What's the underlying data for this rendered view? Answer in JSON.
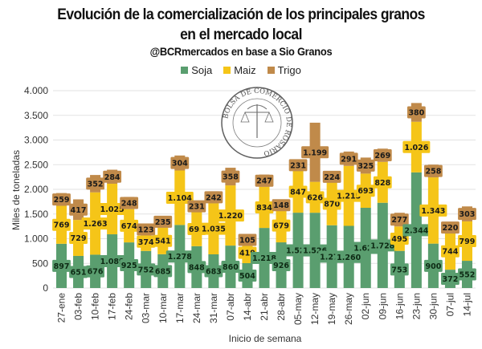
{
  "chart_data": {
    "type": "bar",
    "stacked": true,
    "title": "Evolución de la comercialización de los principales granos",
    "title_line2": "en el mercado local",
    "subtitle": "@BCRmercados en base a Sio Granos",
    "xlabel": "Inicio de semana",
    "ylabel": "Miles de toneladas",
    "ylim": [
      0,
      4000
    ],
    "yticks": [
      "0",
      "500",
      "1.000",
      "1.500",
      "2.000",
      "2.500",
      "3.000",
      "3.500",
      "4.000"
    ],
    "ytick_values": [
      0,
      500,
      1000,
      1500,
      2000,
      2500,
      3000,
      3500,
      4000
    ],
    "grid": true,
    "legend_position": "top",
    "watermark": "BOLSA DE COMERCIO DE ROSARIO",
    "categories": [
      "27-ene",
      "03-feb",
      "10-feb",
      "17-feb",
      "24-feb",
      "03-mar",
      "10-mar",
      "17-mar",
      "24-mar",
      "31-mar",
      "07-abr",
      "14-abr",
      "21-abr",
      "28-abr",
      "05-may",
      "12-may",
      "19-may",
      "26-may",
      "02-jun",
      "09-jun",
      "16-jun",
      "23-jun",
      "30-jun",
      "07-jul",
      "14-jul"
    ],
    "series": [
      {
        "name": "Soja",
        "color": "#5a9e6f",
        "values": [
          897,
          651,
          676,
          1089,
          925,
          752,
          685,
          1278,
          848,
          683,
          860,
          504,
          1218,
          926,
          1527,
          1526,
          1272,
          1260,
          1626,
          1728,
          753,
          2344,
          900,
          372,
          552
        ],
        "labels": [
          "897",
          "651",
          "676",
          "1.089",
          "925",
          "752",
          "685",
          "1.278",
          "848",
          "683",
          "860",
          "504",
          "1.218",
          "926",
          "1.527",
          "1.526",
          "1.272",
          "1.260",
          "1.626",
          "1.728",
          "753",
          "2.344",
          "900",
          "372",
          "552"
        ]
      },
      {
        "name": "Maiz",
        "color": "#f5c518",
        "values": [
          769,
          729,
          1263,
          1025,
          674,
          374,
          541,
          1104,
          693,
          1035,
          1220,
          419,
          834,
          679,
          847,
          626,
          870,
          1215,
          693,
          828,
          495,
          1026,
          1343,
          744,
          799
        ],
        "labels": [
          "769",
          "729",
          "1.263",
          "1.025",
          "674",
          "374",
          "541",
          "1.104",
          "693",
          "1.035",
          "1.220",
          "419",
          "834",
          "679",
          "847",
          "626",
          "870",
          "1.215",
          "693",
          "828",
          "495",
          "1.026",
          "1.343",
          "744",
          "799"
        ]
      },
      {
        "name": "Trigo",
        "color": "#c08a4a",
        "values": [
          259,
          417,
          352,
          284,
          248,
          123,
          235,
          304,
          231,
          242,
          358,
          105,
          247,
          148,
          231,
          1199,
          224,
          291,
          325,
          269,
          277,
          380,
          258,
          220,
          303
        ],
        "labels": [
          "259",
          "417",
          "352",
          "284",
          "248",
          "123",
          "235",
          "304",
          "231",
          "242",
          "358",
          "105",
          "247",
          "148",
          "231",
          "1.199",
          "224",
          "291",
          "325",
          "269",
          "277",
          "380",
          "258",
          "220",
          "303"
        ]
      }
    ]
  }
}
